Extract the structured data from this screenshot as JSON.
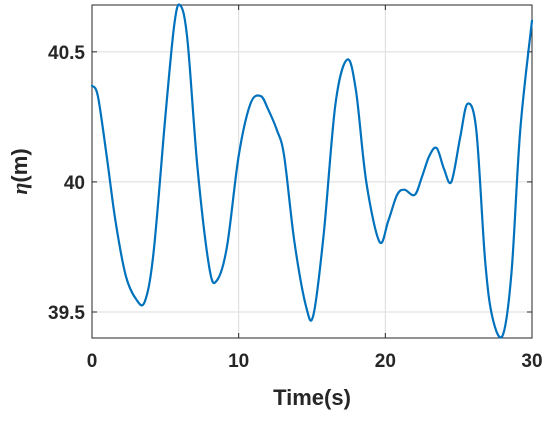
{
  "chart_data": {
    "type": "line",
    "xlabel": "Time(s)",
    "ylabel": "η(m)",
    "ylabel_symbol": "η",
    "ylabel_unit": "(m)",
    "xlim": [
      0,
      30
    ],
    "ylim": [
      39.4,
      40.68
    ],
    "x_ticks": [
      "0",
      "10",
      "20",
      "30"
    ],
    "y_ticks": [
      "39.5",
      "40",
      "40.5"
    ],
    "x_tick_values": [
      0,
      10,
      20,
      30
    ],
    "y_tick_values": [
      39.5,
      40,
      40.5
    ],
    "grid": true,
    "line_color": "#0072BD",
    "series": [
      {
        "x": [
          0,
          0.4,
          1.0,
          1.6,
          2.3,
          3.0,
          3.6,
          4.2,
          5.0,
          5.6,
          6.0,
          6.5,
          7.2,
          8.0,
          8.5,
          9.2,
          10.0,
          10.8,
          11.5,
          12.0,
          12.6,
          13.1,
          13.8,
          14.6,
          15.1,
          15.8,
          16.6,
          17.4,
          18.0,
          18.7,
          19.6,
          20.2,
          20.8,
          21.3,
          22.0,
          22.5,
          23.0,
          23.5,
          24.0,
          24.5,
          25.1,
          25.6,
          26.2,
          26.8,
          27.3,
          28.0,
          28.6,
          29.2,
          30.0
        ],
        "y": [
          40.37,
          40.33,
          40.1,
          39.85,
          39.64,
          39.55,
          39.54,
          39.73,
          40.25,
          40.6,
          40.68,
          40.55,
          40.05,
          39.67,
          39.62,
          39.75,
          40.1,
          40.3,
          40.33,
          40.28,
          40.2,
          40.1,
          39.77,
          39.52,
          39.49,
          39.8,
          40.3,
          40.47,
          40.35,
          40.0,
          39.77,
          39.85,
          39.95,
          39.97,
          39.95,
          40.02,
          40.1,
          40.13,
          40.05,
          40.0,
          40.17,
          40.3,
          40.2,
          39.7,
          39.48,
          39.41,
          39.65,
          40.2,
          40.62
        ]
      }
    ]
  }
}
